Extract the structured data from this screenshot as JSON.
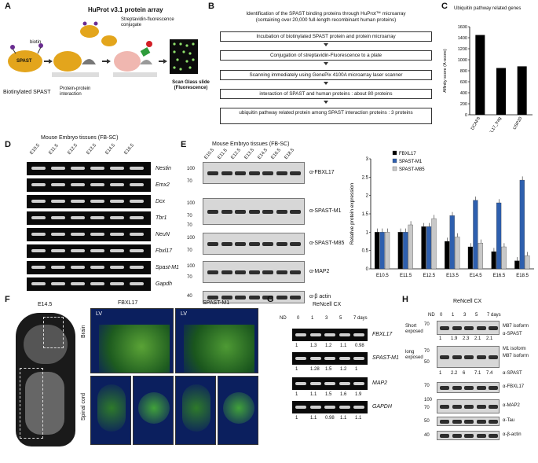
{
  "panels": {
    "A": {
      "letter": "A",
      "title": "HuProt v3.1 protein array",
      "biotin": "biotin",
      "spast": "SPAST",
      "streptavidin": "Streptavidin-fluorescence conjugate",
      "biotinylated": "Biotinylated SPAST",
      "ppi": "Protein-protein interaction",
      "scan": "Scan Glass slide (Fluorescence)"
    },
    "B": {
      "letter": "B",
      "header": "Identification of the SPAST binding proteins through HuProt™ microarray",
      "subheader": "(containing over 20,000 full-length recombinant human proteins)",
      "steps": [
        "Incubation of biotinylated SPAST protein and protein microarray",
        "Conjugation of streptavidin-Fluorescence  to a plate",
        "Scanning immediately using GenePix 4100A microarray laser scanner",
        "interaction of SPAST and human proteins : about 80 proteins",
        "ubiquitin pathway related protein among SPAST interaction proteins : 3 proteins"
      ]
    },
    "C": {
      "letter": "C",
      "title": "Ubiquitin pathway related genes"
    },
    "D": {
      "letter": "D",
      "title": "Mouse Embryo tissues (FB-SC)",
      "lanes": [
        "E10.5",
        "E11.5",
        "E12.5",
        "E13.5",
        "E14.5",
        "E16.5"
      ],
      "genes": [
        "Nestin",
        "Emx2",
        "Dcx",
        "Tbr1",
        "NeuN",
        "Fbxl17",
        "Spast-M1",
        "Gapdh"
      ]
    },
    "E": {
      "letter": "E",
      "title": "Mouse Embryo tissues (FB-SC)",
      "lanes": [
        "E10.5",
        "E11.5",
        "E12.5",
        "E13.5",
        "E14.5",
        "E16.5",
        "E18.5"
      ],
      "labels": [
        "α-FBXL17",
        "α-SPAST-M1",
        "α-SPAST-M85",
        "α-MAP2",
        "α-β actin"
      ],
      "mw": [
        "100",
        "70",
        "100",
        "70",
        "70",
        "100",
        "70",
        "100",
        "70",
        "40"
      ]
    },
    "F": {
      "letter": "F",
      "stage": "E14.5",
      "col1": "FBXL17",
      "col2": "SPAST-M1",
      "row1": "Brain",
      "row2": "Spinal cord",
      "lv": "LV"
    },
    "G": {
      "letter": "G",
      "title": "ReNcell CX",
      "nd": "ND",
      "days": [
        "0",
        "1",
        "3",
        "5",
        "7 days"
      ],
      "genes": [
        "FBXL17",
        "SPAST-M1",
        "MAP2",
        "GAPDH"
      ],
      "quant": [
        [
          "1",
          "1.3",
          "1.2",
          "1.1",
          "0.98"
        ],
        [
          "1",
          "1.28",
          "1.5",
          "1.2",
          "1"
        ],
        [
          "1",
          "1.1",
          "1.5",
          "1.6",
          "1.9"
        ],
        [
          "1",
          "1.1",
          "0.98",
          "1.1",
          "1.1"
        ]
      ]
    },
    "H": {
      "letter": "H",
      "title": "ReNcell CX",
      "nd": "ND",
      "days": [
        "0",
        "1",
        "3",
        "5",
        "7 days"
      ],
      "short": "Short exposed",
      "long": "long exposed",
      "m87": "M87 isoform",
      "m1": "M1 isoform",
      "aspast": "α-SPAST",
      "q1": [
        "1",
        "1.9",
        "2.3",
        "2.1",
        "2.1"
      ],
      "q2": [
        "1",
        "2.2",
        "6",
        "7.1",
        "7.4"
      ],
      "labels": [
        "α-FBXL17",
        "α-MAP2",
        "α-Tau",
        "α-β-actin"
      ],
      "mw": [
        "70",
        "70",
        "50",
        "70",
        "100",
        "70",
        "50",
        "40"
      ]
    }
  },
  "chart_data": [
    {
      "type": "bar",
      "title": "Ubiquitin pathway related genes",
      "ylabel": "Affinity score (A-score)",
      "categories": [
        "DCAF8",
        "FBXL17_frag",
        "USP20"
      ],
      "values": [
        1450,
        850,
        880
      ],
      "ylim": [
        0,
        1600
      ],
      "yticks": [
        0,
        200,
        400,
        600,
        800,
        1000,
        1200,
        1400,
        1600
      ]
    },
    {
      "type": "bar",
      "ylabel": "Relative  protein expression",
      "categories": [
        "E10.5",
        "E11.5",
        "E12.5",
        "E13.5",
        "E14.5",
        "E16.5",
        "E18.5"
      ],
      "series": [
        {
          "name": "FBXL17",
          "color": "#000000",
          "values": [
            1.0,
            1.0,
            1.15,
            0.75,
            0.6,
            0.47,
            0.22
          ]
        },
        {
          "name": "SPAST-M1",
          "color": "#2e5fae",
          "values": [
            1.0,
            1.0,
            1.15,
            1.45,
            1.87,
            1.8,
            2.42
          ]
        },
        {
          "name": "SPAST-M85",
          "color": "#c8c8c8",
          "values": [
            1.0,
            1.2,
            1.37,
            0.87,
            0.7,
            0.6,
            0.36
          ]
        }
      ],
      "ylim": [
        0,
        3
      ],
      "yticks": [
        0,
        0.5,
        1,
        1.5,
        2,
        2.5,
        3
      ],
      "legend": "top-left"
    }
  ]
}
